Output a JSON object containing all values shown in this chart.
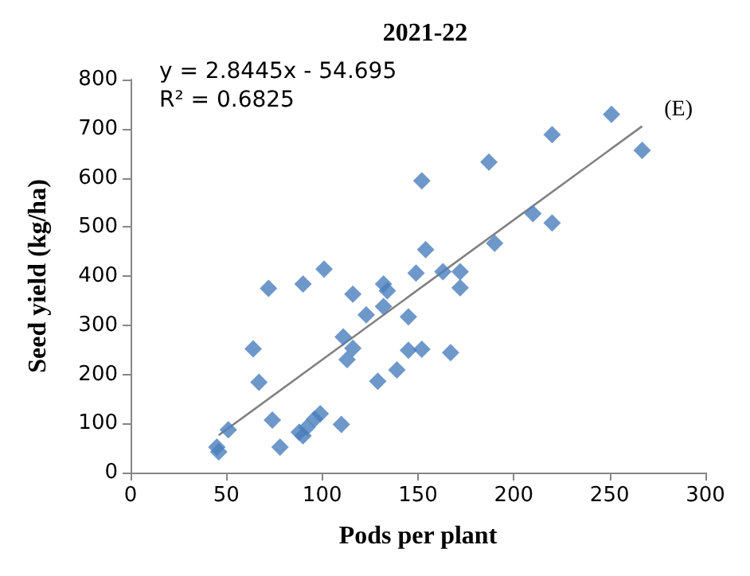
{
  "chart_data": {
    "type": "scatter",
    "title": "2021-22",
    "xlabel": "Pods per plant",
    "ylabel": "Seed yield (kg/ha)",
    "annotations": [
      "y = 2.8445x - 54.695",
      "R² = 0.6825",
      "(E)"
    ],
    "xlim": [
      0,
      300
    ],
    "xticks": [
      0,
      50,
      100,
      150,
      200,
      250,
      300
    ],
    "ylim": [
      0,
      800
    ],
    "yticks": [
      0,
      100,
      200,
      300,
      400,
      500,
      600,
      700,
      800
    ],
    "grid": false,
    "marker": "diamond",
    "series": [
      {
        "color": "#4a7ebb",
        "x": [
          45,
          46,
          51,
          64,
          67,
          72,
          74,
          78,
          88,
          90,
          90,
          92,
          96,
          99,
          101,
          110,
          111,
          113,
          116,
          116,
          123,
          129,
          132,
          134,
          132,
          139,
          145,
          145,
          149,
          152,
          152,
          154,
          163,
          167,
          172,
          172,
          187,
          190,
          210,
          220,
          220,
          251,
          267
        ],
        "values": [
          52,
          42,
          87,
          252,
          184,
          375,
          107,
          52,
          82,
          75,
          384,
          92,
          109,
          120,
          414,
          98,
          276,
          230,
          253,
          363,
          321,
          186,
          384,
          370,
          338,
          209,
          317,
          249,
          406,
          251,
          594,
          454,
          409,
          244,
          409,
          376,
          632,
          467,
          527,
          508,
          688,
          729,
          656
        ]
      },
      {
        "type": "line",
        "color": "#808080",
        "x": [
          46,
          267
        ],
        "values": [
          76,
          705
        ],
        "marker": "none"
      }
    ]
  }
}
